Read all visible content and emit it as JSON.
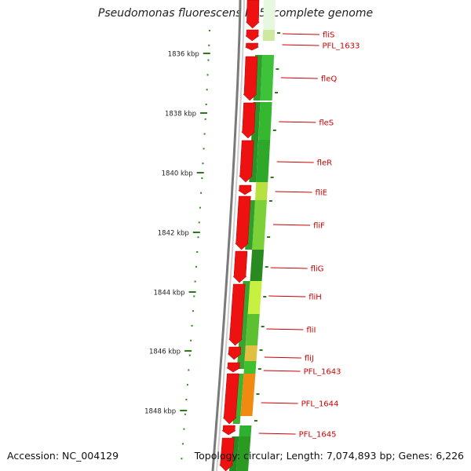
{
  "title": "Pseudomonas fluorescens Pf-5, complete genome",
  "accession": "Accession: NC_004129",
  "topology": "Topology: circular; Length: 7,074,893 bp; Genes: 6,226",
  "colors": {
    "axis_tick": "#2a7a1a",
    "ruler_dot": "#2a8a1a",
    "backbone": "#8a8a8a",
    "gene_forward": "#ee1111",
    "label": "#cc0000",
    "label_line": "#cc0000"
  },
  "ticks": [
    {
      "label": "1836 kbp"
    },
    {
      "label": "1838 kbp"
    },
    {
      "label": "1840 kbp"
    },
    {
      "label": "1842 kbp"
    },
    {
      "label": "1844 kbp"
    },
    {
      "label": "1846 kbp"
    },
    {
      "label": "1848 kbp"
    }
  ],
  "genes": [
    {
      "label": "fliS"
    },
    {
      "label": "PFL_1633"
    },
    {
      "label": "fleQ"
    },
    {
      "label": "fleS"
    },
    {
      "label": "fleR"
    },
    {
      "label": "fliE"
    },
    {
      "label": "fliF"
    },
    {
      "label": "fliG"
    },
    {
      "label": "fliH"
    },
    {
      "label": "fliI"
    },
    {
      "label": "fliJ"
    },
    {
      "label": "PFL_1643"
    },
    {
      "label": "PFL_1644"
    },
    {
      "label": "PFL_1645"
    }
  ]
}
